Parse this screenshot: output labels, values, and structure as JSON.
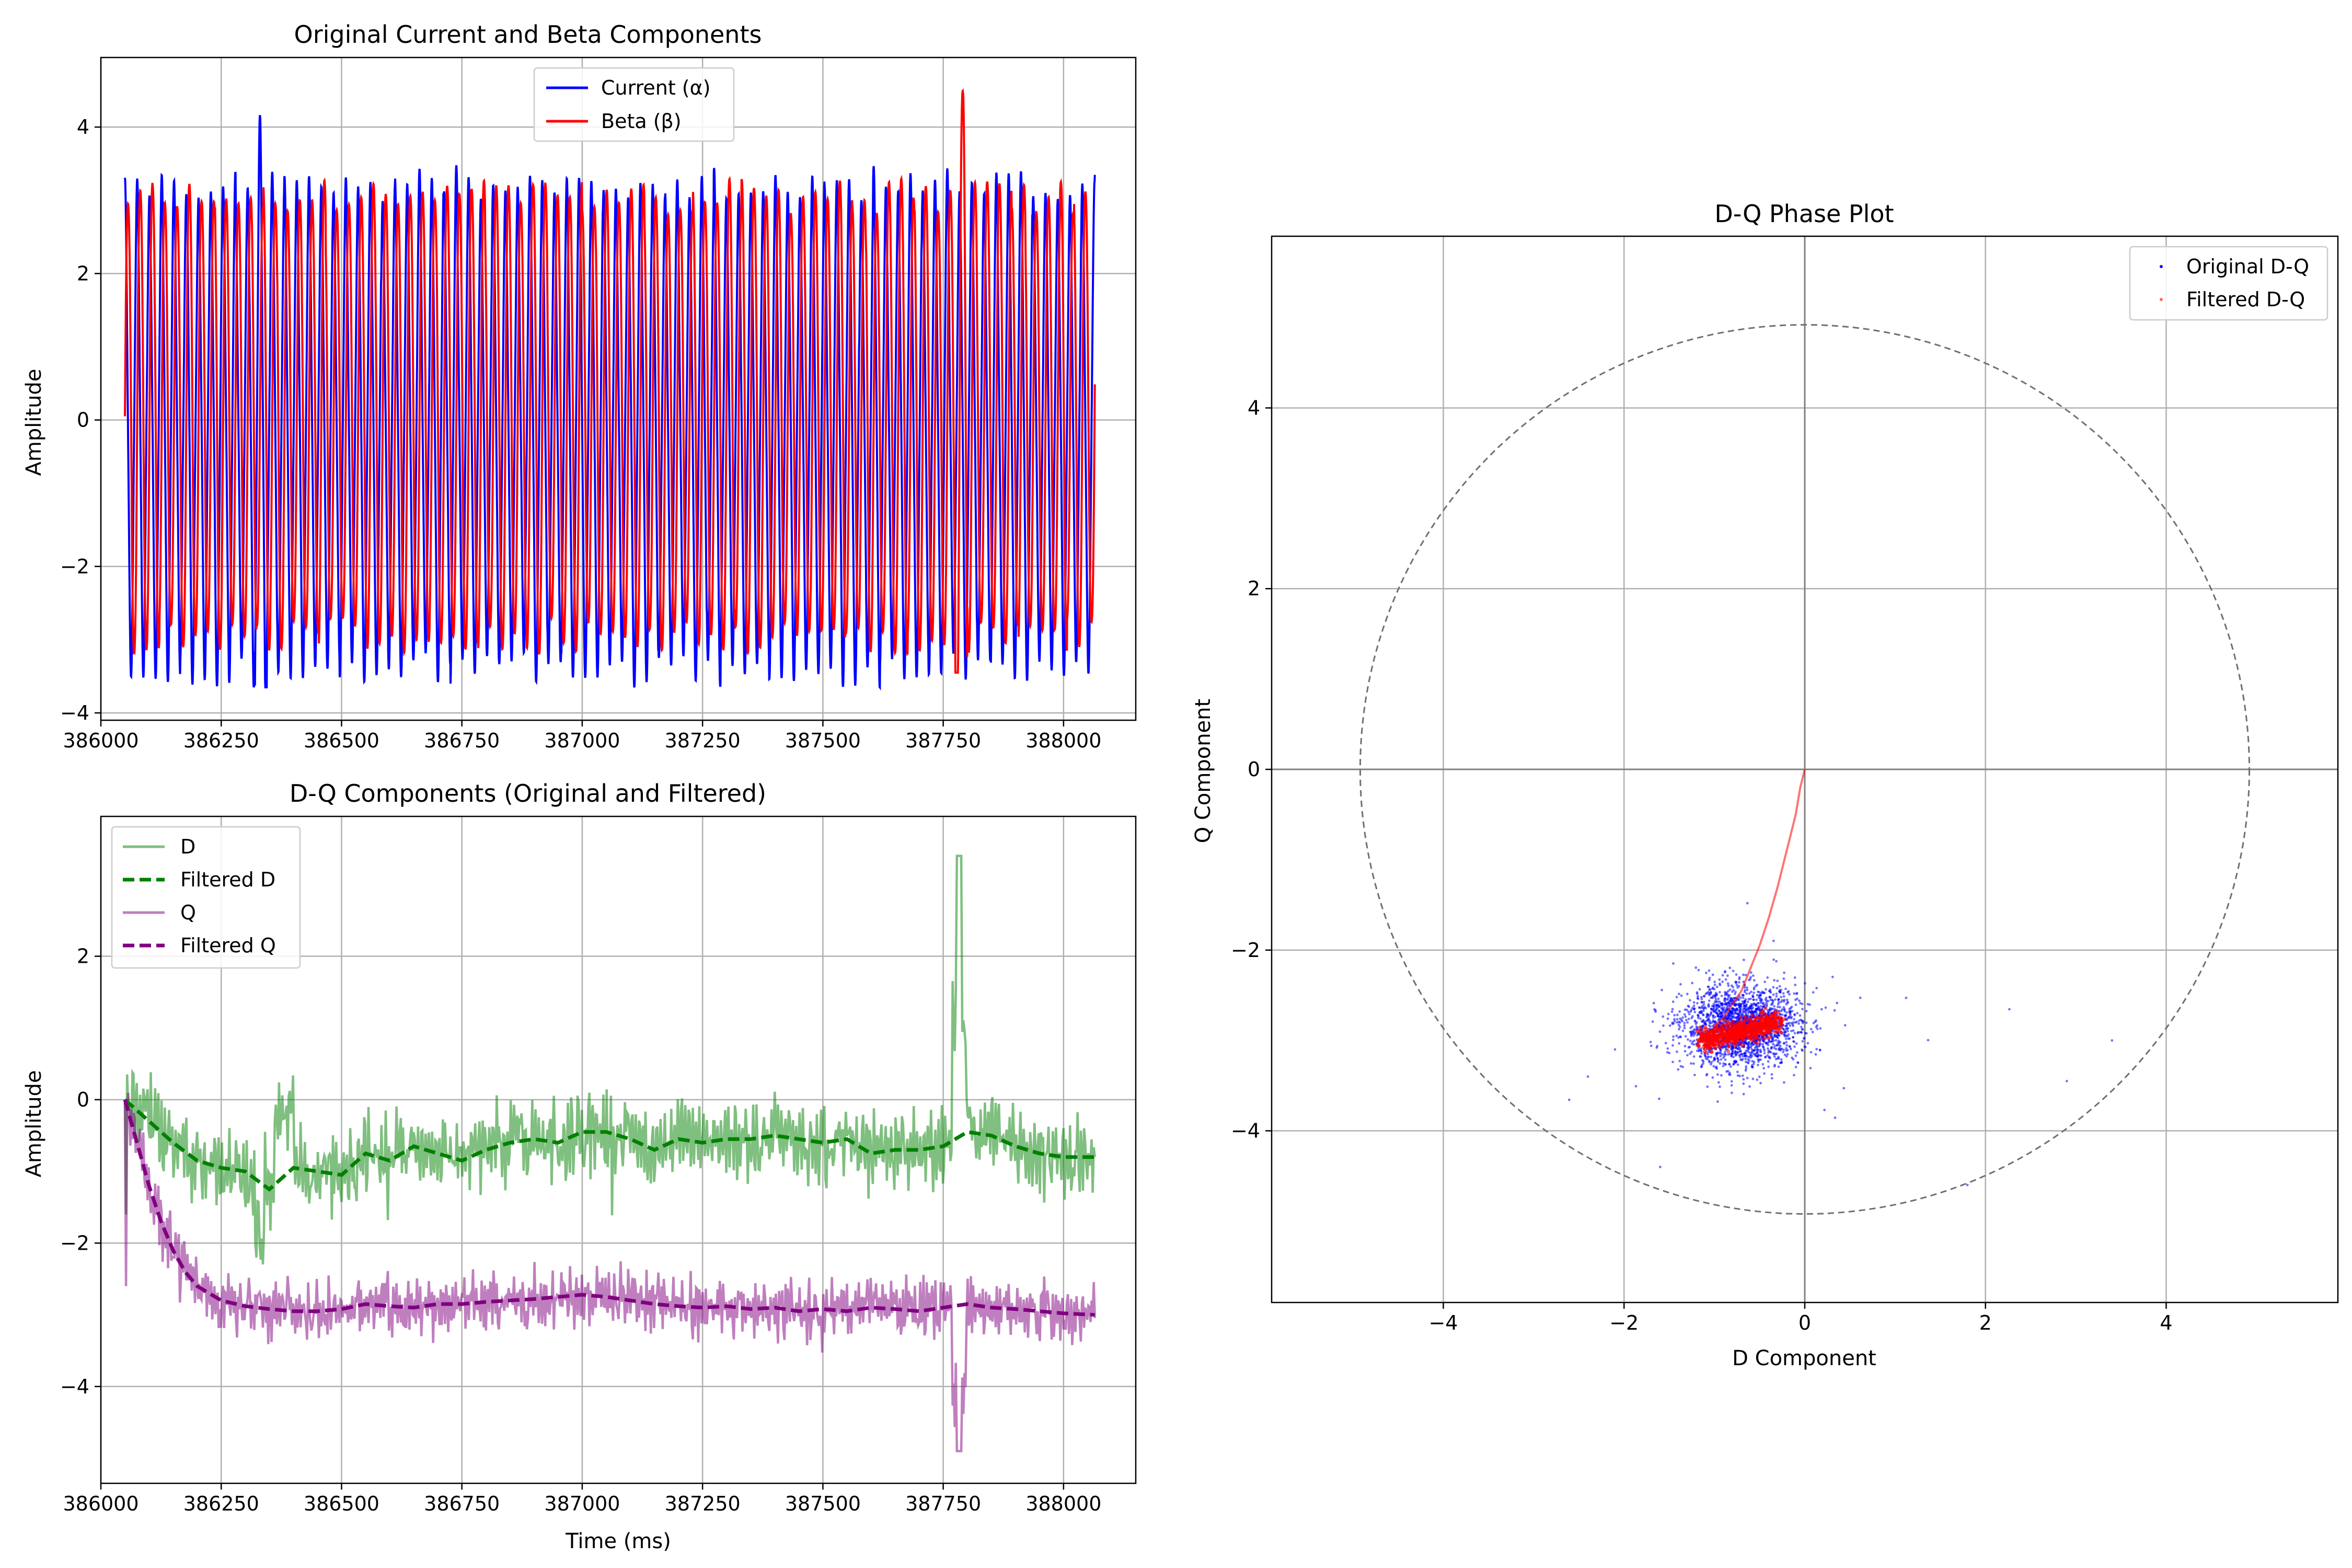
{
  "chart_data": [
    {
      "type": "line",
      "title": "Original Current and Beta Components",
      "xlabel": "",
      "ylabel": "Amplitude",
      "xlim": [
        386000,
        388150
      ],
      "ylim": [
        -4.1,
        4.95
      ],
      "xticks": [
        386000,
        386250,
        386500,
        386750,
        387000,
        387250,
        387500,
        387750,
        388000
      ],
      "yticks": [
        -4,
        -2,
        0,
        2,
        4
      ],
      "grid": true,
      "legend": "top-center",
      "series": [
        {
          "name": "Current (α)",
          "color": "#0000ff",
          "x_start": 386050,
          "x_end": 388065,
          "period": 25.5,
          "amplitude_range": [
            -3.65,
            4.15
          ]
        },
        {
          "name": "Beta (β)",
          "color": "#ff0000",
          "x_start": 386050,
          "x_end": 388065,
          "period": 25.5,
          "amplitude_range": [
            -3.45,
            4.55
          ]
        }
      ]
    },
    {
      "type": "line",
      "title": "D-Q Components (Original and Filtered)",
      "xlabel": "Time (ms)",
      "ylabel": "Amplitude",
      "xlim": [
        386000,
        388150
      ],
      "ylim": [
        -5.35,
        3.95
      ],
      "xticks": [
        386000,
        386250,
        386500,
        386750,
        387000,
        387250,
        387500,
        387750,
        388000
      ],
      "yticks": [
        -4,
        -2,
        0,
        2
      ],
      "grid": true,
      "legend": "top-left",
      "series": [
        {
          "name": "D",
          "color": "#008000",
          "style": "solid",
          "opacity": 0.5
        },
        {
          "name": "Filtered D",
          "color": "#008000",
          "style": "dashed",
          "x": [
            386050,
            386100,
            386150,
            386200,
            386250,
            386300,
            386350,
            386400,
            386450,
            386500,
            386550,
            386600,
            386650,
            386700,
            386750,
            386800,
            386850,
            386900,
            386950,
            387000,
            387050,
            387100,
            387150,
            387200,
            387250,
            387300,
            387350,
            387400,
            387450,
            387500,
            387550,
            387600,
            387650,
            387700,
            387750,
            387800,
            387850,
            387900,
            387950,
            388000,
            388065
          ],
          "y": [
            0.0,
            -0.3,
            -0.6,
            -0.85,
            -0.95,
            -1.0,
            -1.25,
            -0.95,
            -1.0,
            -1.05,
            -0.75,
            -0.85,
            -0.65,
            -0.75,
            -0.85,
            -0.7,
            -0.6,
            -0.55,
            -0.6,
            -0.45,
            -0.45,
            -0.55,
            -0.7,
            -0.55,
            -0.6,
            -0.55,
            -0.55,
            -0.5,
            -0.55,
            -0.6,
            -0.55,
            -0.75,
            -0.7,
            -0.7,
            -0.65,
            -0.45,
            -0.5,
            -0.65,
            -0.75,
            -0.8,
            -0.8
          ]
        },
        {
          "name": "Q",
          "color": "#800080",
          "style": "solid",
          "opacity": 0.5
        },
        {
          "name": "Filtered Q",
          "color": "#800080",
          "style": "dashed",
          "x": [
            386050,
            386075,
            386100,
            386125,
            386150,
            386175,
            386200,
            386250,
            386300,
            386350,
            386400,
            386450,
            386500,
            386550,
            386600,
            386650,
            386700,
            386750,
            386800,
            386850,
            386900,
            386950,
            387000,
            387050,
            387100,
            387150,
            387200,
            387250,
            387300,
            387350,
            387400,
            387450,
            387500,
            387550,
            387600,
            387650,
            387700,
            387750,
            387800,
            387850,
            387900,
            387950,
            388000,
            388065
          ],
          "y": [
            0.0,
            -0.6,
            -1.2,
            -1.7,
            -2.1,
            -2.4,
            -2.6,
            -2.8,
            -2.88,
            -2.92,
            -2.95,
            -2.95,
            -2.92,
            -2.85,
            -2.88,
            -2.9,
            -2.85,
            -2.85,
            -2.82,
            -2.8,
            -2.78,
            -2.75,
            -2.72,
            -2.75,
            -2.8,
            -2.85,
            -2.88,
            -2.9,
            -2.88,
            -2.92,
            -2.9,
            -2.95,
            -2.92,
            -2.95,
            -2.9,
            -2.92,
            -2.95,
            -2.9,
            -2.85,
            -2.9,
            -2.92,
            -2.95,
            -2.98,
            -3.0
          ]
        }
      ]
    },
    {
      "type": "scatter",
      "title": "D-Q Phase Plot",
      "xlabel": "D Component",
      "ylabel": "Q Component",
      "xlim": [
        -5.9,
        5.9
      ],
      "ylim": [
        -5.9,
        5.9
      ],
      "xticks": [
        -4,
        -2,
        0,
        2,
        4
      ],
      "yticks": [
        -4,
        -2,
        0,
        2,
        4
      ],
      "grid": true,
      "legend": "top-right",
      "reference_circle_radius": 4.92,
      "series": [
        {
          "name": "Original D-Q",
          "color": "#0000ff",
          "center": [
            -0.7,
            -2.85
          ],
          "spread": [
            0.32,
            0.22
          ]
        },
        {
          "name": "Filtered D-Q",
          "color": "#ff0000",
          "x": [
            0.0,
            -0.05,
            -0.1,
            -0.2,
            -0.3,
            -0.4,
            -0.5,
            -0.6,
            -0.7,
            -0.8,
            -0.9,
            -1.0,
            -1.1,
            -1.2,
            -1.0,
            -0.8,
            -0.6,
            -0.5,
            -0.7,
            -0.9
          ],
          "y": [
            0.0,
            -0.2,
            -0.5,
            -0.9,
            -1.3,
            -1.65,
            -1.95,
            -2.2,
            -2.45,
            -2.6,
            -2.75,
            -2.85,
            -2.95,
            -3.0,
            -2.95,
            -2.9,
            -2.85,
            -2.8,
            -2.95,
            -3.0
          ]
        }
      ]
    }
  ]
}
